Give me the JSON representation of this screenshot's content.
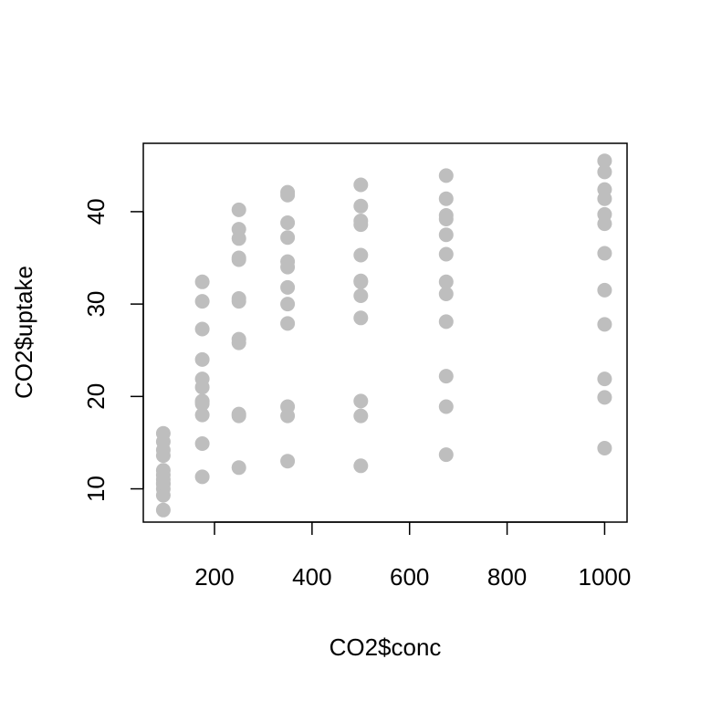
{
  "chart_data": {
    "type": "scatter",
    "title": "",
    "xlabel": "CO2$conc",
    "ylabel": "CO2$uptake",
    "xlim": [
      54,
      1046
    ],
    "ylim": [
      6.4,
      47.4
    ],
    "x_ticks": [
      200,
      400,
      600,
      800,
      1000
    ],
    "y_ticks": [
      10,
      20,
      30,
      40
    ],
    "grid": false,
    "legend": "none",
    "point_color": "#bebebe",
    "points": [
      {
        "x": 95,
        "y": 16.0
      },
      {
        "x": 95,
        "y": 15.1
      },
      {
        "x": 95,
        "y": 14.2
      },
      {
        "x": 95,
        "y": 13.6
      },
      {
        "x": 95,
        "y": 12.0
      },
      {
        "x": 95,
        "y": 11.5
      },
      {
        "x": 95,
        "y": 11.0
      },
      {
        "x": 95,
        "y": 10.5
      },
      {
        "x": 95,
        "y": 10.0
      },
      {
        "x": 95,
        "y": 9.3
      },
      {
        "x": 95,
        "y": 7.7
      },
      {
        "x": 95,
        "y": 10.6
      },
      {
        "x": 175,
        "y": 32.4
      },
      {
        "x": 175,
        "y": 30.3
      },
      {
        "x": 175,
        "y": 27.3
      },
      {
        "x": 175,
        "y": 24.0
      },
      {
        "x": 175,
        "y": 21.9
      },
      {
        "x": 175,
        "y": 21.0
      },
      {
        "x": 175,
        "y": 19.5
      },
      {
        "x": 175,
        "y": 19.2
      },
      {
        "x": 175,
        "y": 18.0
      },
      {
        "x": 175,
        "y": 14.9
      },
      {
        "x": 175,
        "y": 11.3
      },
      {
        "x": 175,
        "y": 19.4
      },
      {
        "x": 250,
        "y": 40.2
      },
      {
        "x": 250,
        "y": 38.1
      },
      {
        "x": 250,
        "y": 37.1
      },
      {
        "x": 250,
        "y": 35.0
      },
      {
        "x": 250,
        "y": 34.8
      },
      {
        "x": 250,
        "y": 30.6
      },
      {
        "x": 250,
        "y": 30.3
      },
      {
        "x": 250,
        "y": 26.2
      },
      {
        "x": 250,
        "y": 25.8
      },
      {
        "x": 250,
        "y": 18.1
      },
      {
        "x": 250,
        "y": 17.9
      },
      {
        "x": 250,
        "y": 12.3
      },
      {
        "x": 350,
        "y": 42.1
      },
      {
        "x": 350,
        "y": 41.8
      },
      {
        "x": 350,
        "y": 38.8
      },
      {
        "x": 350,
        "y": 37.2
      },
      {
        "x": 350,
        "y": 34.6
      },
      {
        "x": 350,
        "y": 34.0
      },
      {
        "x": 350,
        "y": 31.8
      },
      {
        "x": 350,
        "y": 30.0
      },
      {
        "x": 350,
        "y": 27.9
      },
      {
        "x": 350,
        "y": 18.9
      },
      {
        "x": 350,
        "y": 17.9
      },
      {
        "x": 350,
        "y": 13.0
      },
      {
        "x": 500,
        "y": 42.9
      },
      {
        "x": 500,
        "y": 40.6
      },
      {
        "x": 500,
        "y": 39.0
      },
      {
        "x": 500,
        "y": 38.6
      },
      {
        "x": 500,
        "y": 35.3
      },
      {
        "x": 500,
        "y": 32.5
      },
      {
        "x": 500,
        "y": 30.9
      },
      {
        "x": 500,
        "y": 28.5
      },
      {
        "x": 500,
        "y": 19.5
      },
      {
        "x": 500,
        "y": 17.9
      },
      {
        "x": 500,
        "y": 12.5
      },
      {
        "x": 500,
        "y": 32.4
      },
      {
        "x": 675,
        "y": 43.9
      },
      {
        "x": 675,
        "y": 41.4
      },
      {
        "x": 675,
        "y": 39.6
      },
      {
        "x": 675,
        "y": 39.2
      },
      {
        "x": 675,
        "y": 37.5
      },
      {
        "x": 675,
        "y": 35.4
      },
      {
        "x": 675,
        "y": 32.4
      },
      {
        "x": 675,
        "y": 31.1
      },
      {
        "x": 675,
        "y": 28.1
      },
      {
        "x": 675,
        "y": 22.2
      },
      {
        "x": 675,
        "y": 18.9
      },
      {
        "x": 675,
        "y": 13.7
      },
      {
        "x": 1000,
        "y": 45.5
      },
      {
        "x": 1000,
        "y": 44.3
      },
      {
        "x": 1000,
        "y": 42.4
      },
      {
        "x": 1000,
        "y": 41.4
      },
      {
        "x": 1000,
        "y": 39.7
      },
      {
        "x": 1000,
        "y": 38.7
      },
      {
        "x": 1000,
        "y": 35.5
      },
      {
        "x": 1000,
        "y": 31.5
      },
      {
        "x": 1000,
        "y": 27.8
      },
      {
        "x": 1000,
        "y": 21.9
      },
      {
        "x": 1000,
        "y": 19.9
      },
      {
        "x": 1000,
        "y": 14.4
      }
    ]
  }
}
